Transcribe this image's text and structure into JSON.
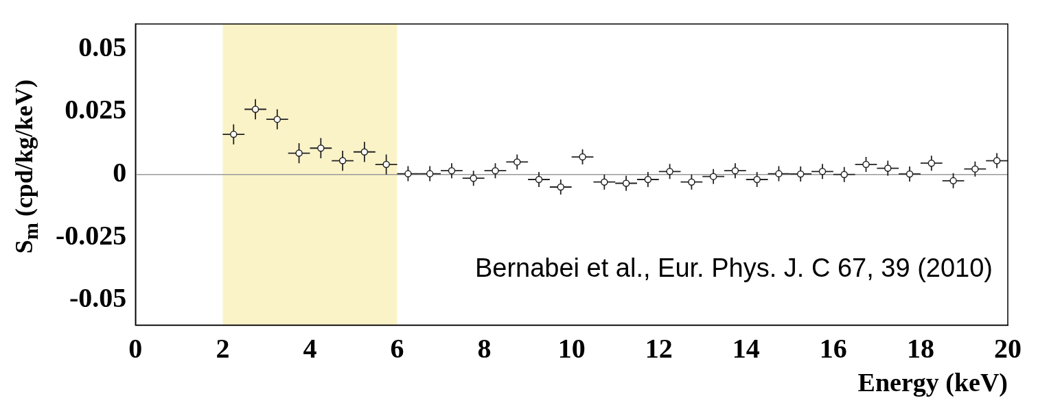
{
  "chart_data": {
    "type": "scatter",
    "ylabel": "S$_{m}$ (cpd/kg/keV)",
    "xlabel": "Energy (keV)",
    "x": [
      2.25,
      2.75,
      3.25,
      3.75,
      4.25,
      4.75,
      5.25,
      5.75,
      6.25,
      6.75,
      7.25,
      7.75,
      8.25,
      8.75,
      9.25,
      9.75,
      10.25,
      10.75,
      11.25,
      11.75,
      12.25,
      12.75,
      13.25,
      13.75,
      14.25,
      14.75,
      15.25,
      15.75,
      16.25,
      16.75,
      17.25,
      17.75,
      18.25,
      18.75,
      19.25,
      19.75
    ],
    "series": [
      {
        "color": "#222222",
        "values": [
          0.016,
          0.026,
          0.022,
          0.0085,
          0.0105,
          0.0055,
          0.009,
          0.004,
          0.0003,
          0.0003,
          0.0015,
          -0.0015,
          0.0015,
          0.005,
          -0.002,
          -0.005,
          0.007,
          -0.003,
          -0.0035,
          -0.002,
          0.0012,
          -0.003,
          -0.0008,
          0.0015,
          -0.002,
          0.0003,
          0.0002,
          0.0012,
          0,
          0.004,
          0.0025,
          0.0002,
          0.0045,
          -0.0025,
          0.0022,
          0.0055
        ],
        "errors": [
          0.004,
          0.004,
          0.004,
          0.004,
          0.004,
          0.004,
          0.004,
          0.004,
          0.003,
          0.003,
          0.003,
          0.003,
          0.003,
          0.003,
          0.003,
          0.003,
          0.003,
          0.003,
          0.003,
          0.003,
          0.003,
          0.003,
          0.003,
          0.003,
          0.003,
          0.003,
          0.003,
          0.003,
          0.003,
          0.003,
          0.003,
          0.003,
          0.003,
          0.003,
          0.003,
          0.003
        ],
        "xerrors": [
          0.25,
          0.25,
          0.25,
          0.25,
          0.25,
          0.25,
          0.25,
          0.25,
          0.25,
          0.25,
          0.25,
          0.25,
          0.25,
          0.25,
          0.25,
          0.25,
          0.25,
          0.25,
          0.25,
          0.25,
          0.25,
          0.25,
          0.25,
          0.25,
          0.25,
          0.25,
          0.25,
          0.25,
          0.25,
          0.25,
          0.25,
          0.25,
          0.25,
          0.25,
          0.25,
          0.25
        ]
      }
    ],
    "xlim": [
      0,
      20
    ],
    "ylim": [
      -0.06,
      0.06
    ],
    "xticks": [
      0,
      2,
      4,
      6,
      8,
      10,
      12,
      14,
      16,
      18,
      20
    ],
    "yticks": [
      -0.05,
      -0.025,
      0,
      0.025,
      0.05
    ],
    "bands": [
      {
        "axis": "x",
        "from": 2,
        "to": 6,
        "color": "#fbf3c8"
      }
    ],
    "ref_lines": [
      {
        "axis": "y",
        "value": 0,
        "color": "#999999"
      }
    ],
    "annotations": [
      "Bernabei et al., Eur. Phys. J. C 67, 39 (2010)"
    ],
    "marker": "circle",
    "grid": false,
    "legend": false
  }
}
